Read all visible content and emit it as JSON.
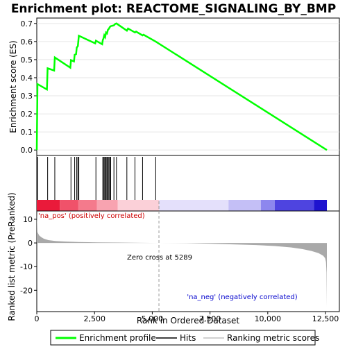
{
  "chart_data": {
    "type": "line",
    "title": "Enrichment plot: REACTOME_SIGNALING_BY_BMP",
    "panels": {
      "enrichment": {
        "ylabel": "Enrichment score (ES)",
        "ylim": [
          -0.03,
          0.73
        ],
        "yticks": [
          0.0,
          0.1,
          0.2,
          0.3,
          0.4,
          0.5,
          0.6,
          0.7
        ],
        "ytick_labels": [
          "0.0",
          "0.1",
          "0.2",
          "0.3",
          "0.4",
          "0.5",
          "0.6",
          "0.7"
        ],
        "series": {
          "name": "Enrichment profile",
          "color": "#00ff00",
          "x": [
            0,
            30,
            440,
            470,
            750,
            780,
            1450,
            1480,
            1610,
            1640,
            1700,
            1730,
            1780,
            1820,
            2530,
            2560,
            2830,
            2860,
            2880,
            2920,
            2960,
            3000,
            3040,
            3080,
            3120,
            3160,
            3200,
            3300,
            3340,
            3400,
            3450,
            3900,
            3950,
            4250,
            4300,
            4580,
            4620,
            5150,
            12560
          ],
          "y": [
            0.0,
            0.365,
            0.335,
            0.452,
            0.44,
            0.512,
            0.455,
            0.497,
            0.49,
            0.527,
            0.53,
            0.567,
            0.575,
            0.632,
            0.59,
            0.605,
            0.585,
            0.61,
            0.615,
            0.635,
            0.625,
            0.65,
            0.645,
            0.665,
            0.67,
            0.68,
            0.685,
            0.688,
            0.69,
            0.698,
            0.7,
            0.66,
            0.672,
            0.65,
            0.655,
            0.634,
            0.638,
            0.6,
            0.0
          ]
        }
      },
      "hits": {
        "name": "Hits",
        "positions": [
          30,
          470,
          780,
          1480,
          1640,
          1730,
          1780,
          1820,
          2560,
          2860,
          2880,
          2920,
          2960,
          3000,
          3040,
          3080,
          3120,
          3160,
          3200,
          3340,
          3450,
          3900,
          4250,
          4580,
          5150
        ]
      },
      "colorbar": {
        "segments": [
          {
            "start": 0,
            "end": 1000,
            "color": "#ea1a3a"
          },
          {
            "start": 1000,
            "end": 1800,
            "color": "#f0526a"
          },
          {
            "start": 1800,
            "end": 2600,
            "color": "#f47a8c"
          },
          {
            "start": 2600,
            "end": 3500,
            "color": "#f8a3b0"
          },
          {
            "start": 3500,
            "end": 5289,
            "color": "#fbd0d8"
          },
          {
            "start": 5289,
            "end": 8300,
            "color": "#e4e0fb"
          },
          {
            "start": 8300,
            "end": 9700,
            "color": "#c4bff6"
          },
          {
            "start": 9700,
            "end": 10300,
            "color": "#8d87ee"
          },
          {
            "start": 10300,
            "end": 12000,
            "color": "#4e44e0"
          },
          {
            "start": 12000,
            "end": 12560,
            "color": "#1e13cf"
          }
        ]
      },
      "ranked": {
        "ylabel": "Ranked list metric (PreRanked)",
        "ylim": [
          -29,
          13.5
        ],
        "yticks": [
          10,
          0,
          -10,
          -20
        ],
        "ytick_labels": [
          "10",
          "0",
          "-10",
          "-20"
        ],
        "metric": {
          "name": "Ranking metric scores",
          "x": [
            0,
            30,
            100,
            200,
            300,
            500,
            800,
            1200,
            1800,
            2600,
            3500,
            4500,
            5289,
            6500,
            7500,
            8500,
            9500,
            10300,
            11000,
            11500,
            11900,
            12200,
            12400,
            12480,
            12520,
            12545,
            12560
          ],
          "y": [
            13.0,
            4.6,
            3.2,
            2.4,
            1.8,
            1.2,
            0.8,
            0.6,
            0.4,
            0.25,
            0.15,
            0.05,
            0.0,
            -0.1,
            -0.3,
            -0.6,
            -0.9,
            -1.3,
            -1.9,
            -2.6,
            -3.4,
            -4.3,
            -5.4,
            -6.4,
            -8.0,
            -12.5,
            -27.0
          ]
        },
        "zero_cross_label": "Zero cross at 5289",
        "zero_cross": 5289,
        "pos_label": "'na_pos' (positively correlated)",
        "neg_label": "'na_neg' (negatively correlated)"
      }
    },
    "xlabel": "Rank in Ordered Dataset",
    "xlim": [
      0,
      13100
    ],
    "xticks": [
      0,
      2500,
      5000,
      7500,
      10000,
      12500
    ],
    "xtick_labels": [
      "0",
      "2,500",
      "5,000",
      "7,500",
      "10,000",
      "12,500"
    ],
    "legend": {
      "placement": "bottom",
      "items": [
        {
          "label": "Enrichment profile",
          "color": "#00ff00"
        },
        {
          "label": "Hits",
          "color": "#000000"
        },
        {
          "label": "Ranking metric scores",
          "color": "#c0c0c0"
        }
      ]
    },
    "colors": {
      "pos_label": "#cc0000",
      "neg_label": "#0000cc",
      "metric_fill": "#a9a9a9"
    }
  }
}
